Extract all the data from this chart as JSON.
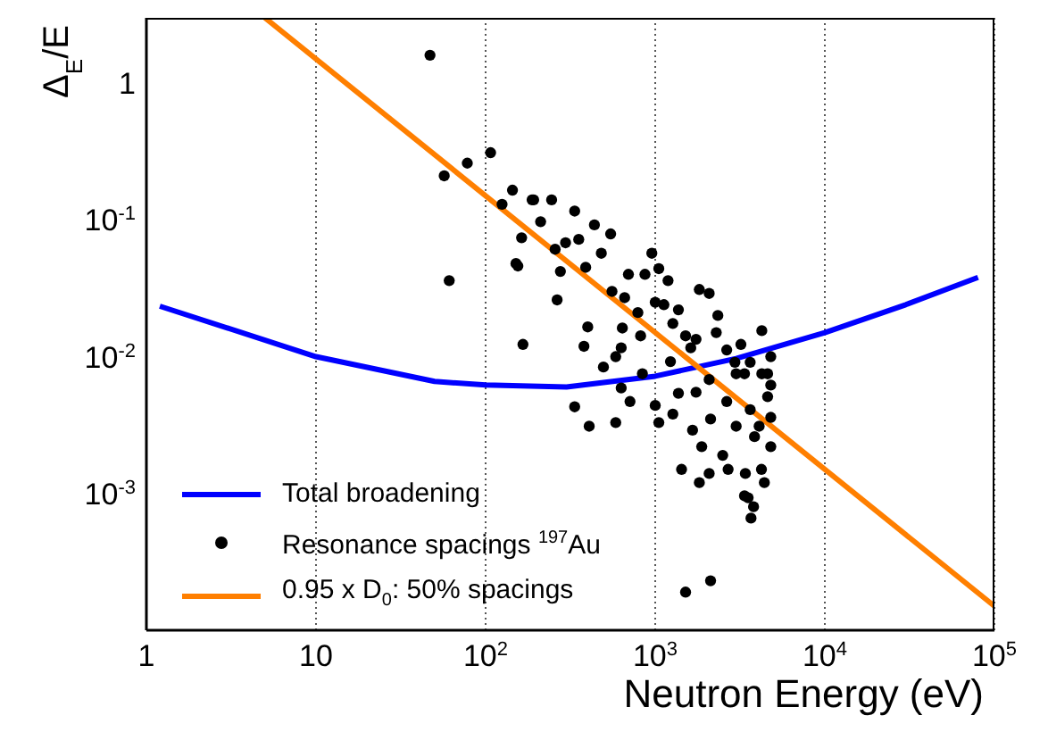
{
  "chart_data": {
    "type": "scatter",
    "xlabel": "Neutron Energy (eV)",
    "ylabel": "Δ$_{E}$/E",
    "log": "xy",
    "grid": "x",
    "legend": "bottom left",
    "line_style": "solid",
    "xlim": [
      1,
      100000
    ],
    "xticks": [
      1,
      10,
      {
        "value": 100,
        "label": "10$^{2}$"
      },
      {
        "value": 1000,
        "label": "10$^{3}$"
      },
      {
        "value": 10000,
        "label": "10$^{4}$"
      },
      {
        "value": 100000,
        "label": "10$^{5}$"
      }
    ],
    "ylim": [
      0.0001,
      3
    ],
    "yticks": [
      {
        "value": 0.001,
        "label": "10$^{-3}$"
      },
      {
        "value": 0.01,
        "label": "10$^{-2}$"
      },
      {
        "value": 0.1,
        "label": "10$^{-1}$"
      },
      1
    ],
    "series": [
      {
        "name": "Total broadening",
        "type": "line",
        "color": "#0000ff",
        "x": [
          1.2,
          10,
          50,
          100,
          300,
          1000,
          3000,
          10000,
          30000,
          80000
        ],
        "values": [
          0.0234,
          0.01,
          0.0066,
          0.0062,
          0.006,
          0.0072,
          0.0097,
          0.015,
          0.024,
          0.038
        ]
      },
      {
        "name": "Resonance spacings $^{197}$Au",
        "marker": "circle",
        "color": "#000000",
        "x": [
          47,
          57,
          78,
          107,
          61,
          144,
          125,
          188,
          163,
          155,
          166,
          192,
          245,
          335,
          211,
          438,
          546,
          354,
          296,
          257,
          481,
          955,
          151,
          276,
          389,
          1050,
          695,
          870,
          1190,
          264,
          556,
          660,
          790,
          1000,
          1125,
          1370,
          1820,
          2080,
          2340,
          400,
          640,
          820,
          380,
          630,
          585,
          495,
          1270,
          1510,
          1740,
          2290,
          4250,
          3200,
          2640,
          4800,
          1620,
          1230,
          3360,
          4600,
          840,
          335,
          408,
          585,
          710,
          630,
          1050,
          1000,
          1270,
          1660,
          1430,
          1820,
          2080,
          1880,
          2500,
          2690,
          2120,
          3400,
          4400,
          4230,
          4800,
          3850,
          3360,
          3530,
          3800,
          3670,
          1510,
          2120,
          3000,
          4600,
          4800,
          3630,
          4100,
          3000,
          2640,
          1740,
          1370,
          2080,
          4800,
          4250,
          3630,
          2950
        ],
        "values": [
          1.6,
          0.21,
          0.26,
          0.31,
          0.036,
          0.165,
          0.13,
          0.14,
          0.074,
          0.046,
          0.0123,
          0.14,
          0.14,
          0.116,
          0.097,
          0.092,
          0.079,
          0.072,
          0.068,
          0.061,
          0.057,
          0.057,
          0.048,
          0.042,
          0.045,
          0.044,
          0.04,
          0.04,
          0.036,
          0.026,
          0.03,
          0.027,
          0.021,
          0.025,
          0.024,
          0.022,
          0.031,
          0.029,
          0.02,
          0.0165,
          0.0162,
          0.0142,
          0.0119,
          0.0116,
          0.01,
          0.0084,
          0.0175,
          0.0142,
          0.0134,
          0.015,
          0.0155,
          0.0123,
          0.0112,
          0.01,
          0.0116,
          0.0092,
          0.0075,
          0.0075,
          0.0075,
          0.0043,
          0.0031,
          0.0033,
          0.0047,
          0.0059,
          0.0033,
          0.0044,
          0.0038,
          0.0029,
          0.0015,
          0.0012,
          0.0014,
          0.0022,
          0.0019,
          0.0015,
          0.0035,
          0.0014,
          0.0012,
          0.0015,
          0.0022,
          0.0026,
          0.00096,
          0.00093,
          0.0008,
          0.00066,
          0.00019,
          0.00023,
          0.0075,
          0.0051,
          0.0036,
          0.0041,
          0.0031,
          0.0031,
          0.0047,
          0.0055,
          0.0054,
          0.0068,
          0.0062,
          0.0075,
          0.0091,
          0.0091
        ]
      },
      {
        "name": "0.95 x D$_{0}$: 50% spacings",
        "type": "line",
        "color": "#ff7f00",
        "x": [
          5,
          100000
        ],
        "values": [
          3,
          0.00015
        ]
      }
    ]
  }
}
